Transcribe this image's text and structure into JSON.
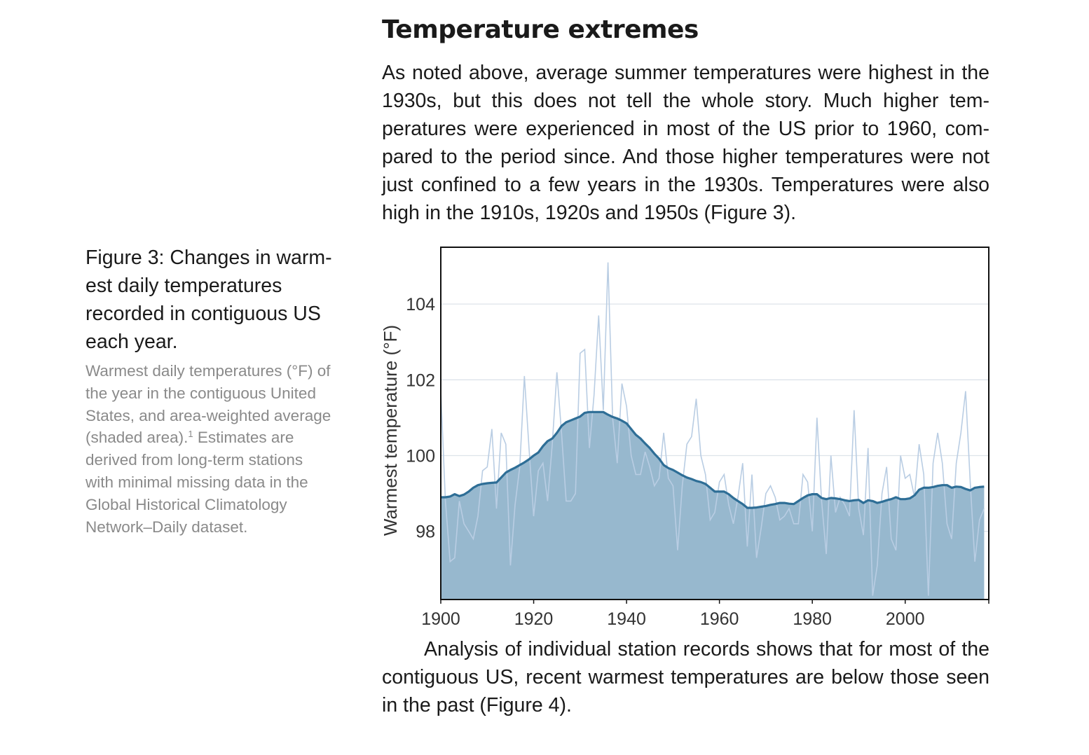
{
  "section": {
    "heading": "Temperature extremes",
    "paragraph_1": "As noted above, average summer temperatures were highest in the 1930s, but this does not tell the whole story. Much higher tem­peratures were experienced in most of the US prior to 1960, com­pared to the period since. And those higher temperatures were not just confined to a few years in the 1930s. Temperatures were also high in the 1910s, 1920s and 1950s (Figure 3).",
    "paragraph_2": "Analysis of individual station records shows that for most of the contiguous US, recent warmest temperatures are below those seen in the past (Figure 4)."
  },
  "caption": {
    "title": "Figure 3: Changes in warm­est daily temperatures recorded in contiguous US each year.",
    "text_before_note": "Warmest daily temperatures (°F) of the year in the contiguous United States, and area-weighted average (shaded area).",
    "note_marker": "1",
    "text_after_note": " Estimates are derived from long-term sta­tions with minimal missing data in the Global Historical Climatolo­gy Network–Daily dataset."
  },
  "colors": {
    "fill": "#97b8ce",
    "smooth_line": "#2e6e96",
    "annual_line": "#b9cde3",
    "grid": "#dde3ea",
    "frame": "#111111"
  },
  "chart_data": {
    "type": "area",
    "title": "",
    "xlabel": "",
    "ylabel": "Warmest temperature (°F)",
    "xlim": [
      1900,
      2018
    ],
    "ylim": [
      96.2,
      105.5
    ],
    "x_ticks": [
      1900,
      1920,
      1940,
      1960,
      1980,
      2000
    ],
    "y_ticks": [
      98,
      100,
      102,
      104
    ],
    "grid": "horizontal",
    "series": [
      {
        "kind": "annual",
        "x_start": 1900,
        "values": [
          101.7,
          98.8,
          97.2,
          97.3,
          98.8,
          98.2,
          98.0,
          97.8,
          98.4,
          99.6,
          99.7,
          100.7,
          98.6,
          100.6,
          100.3,
          97.1,
          98.7,
          99.7,
          102.1,
          100.2,
          98.4,
          99.6,
          99.8,
          98.8,
          100.3,
          102.2,
          100.6,
          98.8,
          98.8,
          99.0,
          102.7,
          102.8,
          100.2,
          101.6,
          103.7,
          101.2,
          105.1,
          101.0,
          99.8,
          101.9,
          101.3,
          100.0,
          99.5,
          99.5,
          100.1,
          99.7,
          99.2,
          99.4,
          100.6,
          99.4,
          99.2,
          97.5,
          99.2,
          100.3,
          100.5,
          101.5,
          100.0,
          99.5,
          98.3,
          98.5,
          99.3,
          99.5,
          98.7,
          98.2,
          98.9,
          99.8,
          97.6,
          99.5,
          97.3,
          98.1,
          99.0,
          99.2,
          98.9,
          98.3,
          98.4,
          98.6,
          98.2,
          98.2,
          99.5,
          99.3,
          98.0,
          101.0,
          98.8,
          97.4,
          100.0,
          98.5,
          98.9,
          98.7,
          98.4,
          101.2,
          98.6,
          97.9,
          100.2,
          96.3,
          97.1,
          99.0,
          99.7,
          97.8,
          97.5,
          100.0,
          99.4,
          99.5,
          98.9,
          100.3,
          99.5,
          96.3,
          99.8,
          100.6,
          99.8,
          98.2,
          97.8,
          99.8,
          100.6,
          101.7,
          99.3,
          97.2,
          98.3,
          98.6
        ]
      },
      {
        "kind": "area-weighted average",
        "x_start": 1900,
        "values": [
          98.9,
          98.9,
          98.92,
          98.98,
          98.93,
          98.97,
          99.05,
          99.15,
          99.22,
          99.25,
          99.27,
          99.28,
          99.29,
          99.42,
          99.55,
          99.62,
          99.68,
          99.75,
          99.82,
          99.9,
          100.0,
          100.08,
          100.25,
          100.38,
          100.45,
          100.6,
          100.78,
          100.88,
          100.93,
          100.98,
          101.03,
          101.13,
          101.15,
          101.15,
          101.15,
          101.15,
          101.08,
          101.02,
          100.98,
          100.92,
          100.85,
          100.7,
          100.55,
          100.45,
          100.32,
          100.2,
          100.05,
          99.92,
          99.75,
          99.67,
          99.62,
          99.55,
          99.48,
          99.42,
          99.38,
          99.33,
          99.3,
          99.25,
          99.15,
          99.05,
          99.05,
          99.05,
          98.98,
          98.88,
          98.8,
          98.72,
          98.62,
          98.62,
          98.63,
          98.65,
          98.67,
          98.7,
          98.72,
          98.75,
          98.75,
          98.73,
          98.72,
          98.8,
          98.88,
          98.95,
          98.98,
          98.98,
          98.88,
          98.85,
          98.88,
          98.87,
          98.85,
          98.82,
          98.8,
          98.82,
          98.83,
          98.75,
          98.82,
          98.8,
          98.75,
          98.78,
          98.82,
          98.85,
          98.9,
          98.85,
          98.85,
          98.87,
          98.95,
          99.1,
          99.15,
          99.15,
          99.17,
          99.2,
          99.22,
          99.22,
          99.15,
          99.18,
          99.17,
          99.12,
          99.08,
          99.15,
          99.17,
          99.18
        ]
      }
    ]
  }
}
